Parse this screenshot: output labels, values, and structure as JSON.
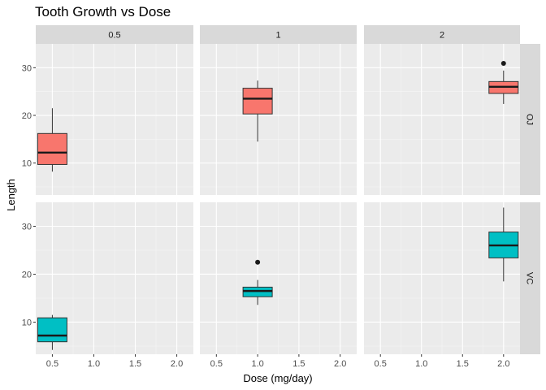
{
  "chart_data": {
    "type": "boxplot",
    "title": "Tooth Growth vs Dose",
    "xlabel": "Dose (mg/day)",
    "ylabel": "Length",
    "facet_cols": [
      "0.5",
      "1",
      "2"
    ],
    "facet_rows": [
      "OJ",
      "VC"
    ],
    "x_ticks": [
      0.5,
      1.0,
      1.5,
      2.0
    ],
    "x_tick_labels": [
      "0.5",
      "1.0",
      "1.5",
      "2.0"
    ],
    "xlim": [
      0.3,
      2.2
    ],
    "y_ticks": [
      10,
      20,
      30
    ],
    "y_tick_labels": [
      "10",
      "20",
      "30"
    ],
    "ylim": [
      3.3,
      35.0
    ],
    "grid": true,
    "legend": "none",
    "colors": {
      "OJ": "#f8766d",
      "VC": "#00bfc4"
    },
    "panel_background": "#ebebeb",
    "strip_background": "#d9d9d9",
    "boxes": [
      {
        "row": "OJ",
        "col": "0.5",
        "x": 0.5,
        "q1": 9.7,
        "median": 12.2,
        "q3": 16.2,
        "whisker_low": 8.2,
        "whisker_high": 21.5,
        "outliers": []
      },
      {
        "row": "OJ",
        "col": "1",
        "x": 1.0,
        "q1": 20.3,
        "median": 23.5,
        "q3": 25.7,
        "whisker_low": 14.5,
        "whisker_high": 27.3,
        "outliers": []
      },
      {
        "row": "OJ",
        "col": "2",
        "x": 2.0,
        "q1": 24.6,
        "median": 26.0,
        "q3": 27.1,
        "whisker_low": 22.4,
        "whisker_high": 29.4,
        "outliers": [
          30.9
        ]
      },
      {
        "row": "VC",
        "col": "0.5",
        "x": 0.5,
        "q1": 5.9,
        "median": 7.2,
        "q3": 10.9,
        "whisker_low": 4.2,
        "whisker_high": 11.5,
        "outliers": []
      },
      {
        "row": "VC",
        "col": "1",
        "x": 1.0,
        "q1": 15.3,
        "median": 16.5,
        "q3": 17.3,
        "whisker_low": 13.6,
        "whisker_high": 18.8,
        "outliers": [
          22.5
        ]
      },
      {
        "row": "VC",
        "col": "2",
        "x": 2.0,
        "q1": 23.4,
        "median": 26.0,
        "q3": 28.8,
        "whisker_low": 18.5,
        "whisker_high": 33.9,
        "outliers": []
      }
    ]
  }
}
